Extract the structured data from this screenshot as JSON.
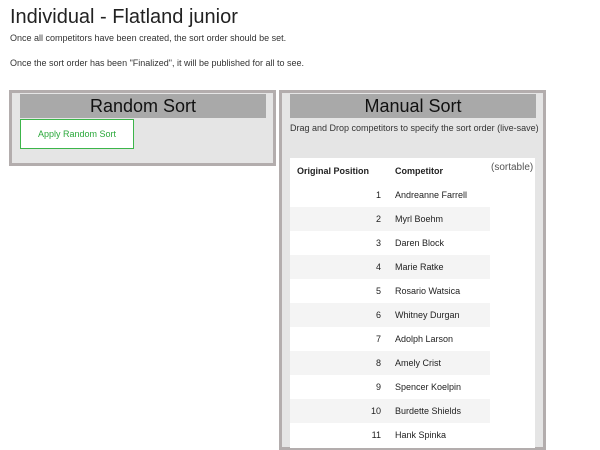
{
  "header": {
    "title": "Individual - Flatland junior",
    "notes": [
      "Once all competitors have been created, the sort order should be set.",
      "Once the sort order has been \"Finalized\", it will be published for all to see."
    ]
  },
  "random_panel": {
    "title": "Random Sort",
    "button": "Apply Random Sort"
  },
  "manual_panel": {
    "title": "Manual Sort",
    "description": "Drag and Drop competitors to specify the sort order (live-save)",
    "sortable_note": "(sortable)",
    "table": {
      "columns": [
        "Original Position",
        "Competitor"
      ],
      "rows": [
        [
          1,
          "Andreanne Farrell"
        ],
        [
          2,
          "Myrl Boehm"
        ],
        [
          3,
          "Daren Block"
        ],
        [
          4,
          "Marie Ratke"
        ],
        [
          5,
          "Rosario Watsica"
        ],
        [
          6,
          "Whitney Durgan"
        ],
        [
          7,
          "Adolph Larson"
        ],
        [
          8,
          "Amely Crist"
        ],
        [
          9,
          "Spencer Koelpin"
        ],
        [
          10,
          "Burdette Shields"
        ],
        [
          11,
          "Hank Spinka"
        ]
      ]
    }
  }
}
